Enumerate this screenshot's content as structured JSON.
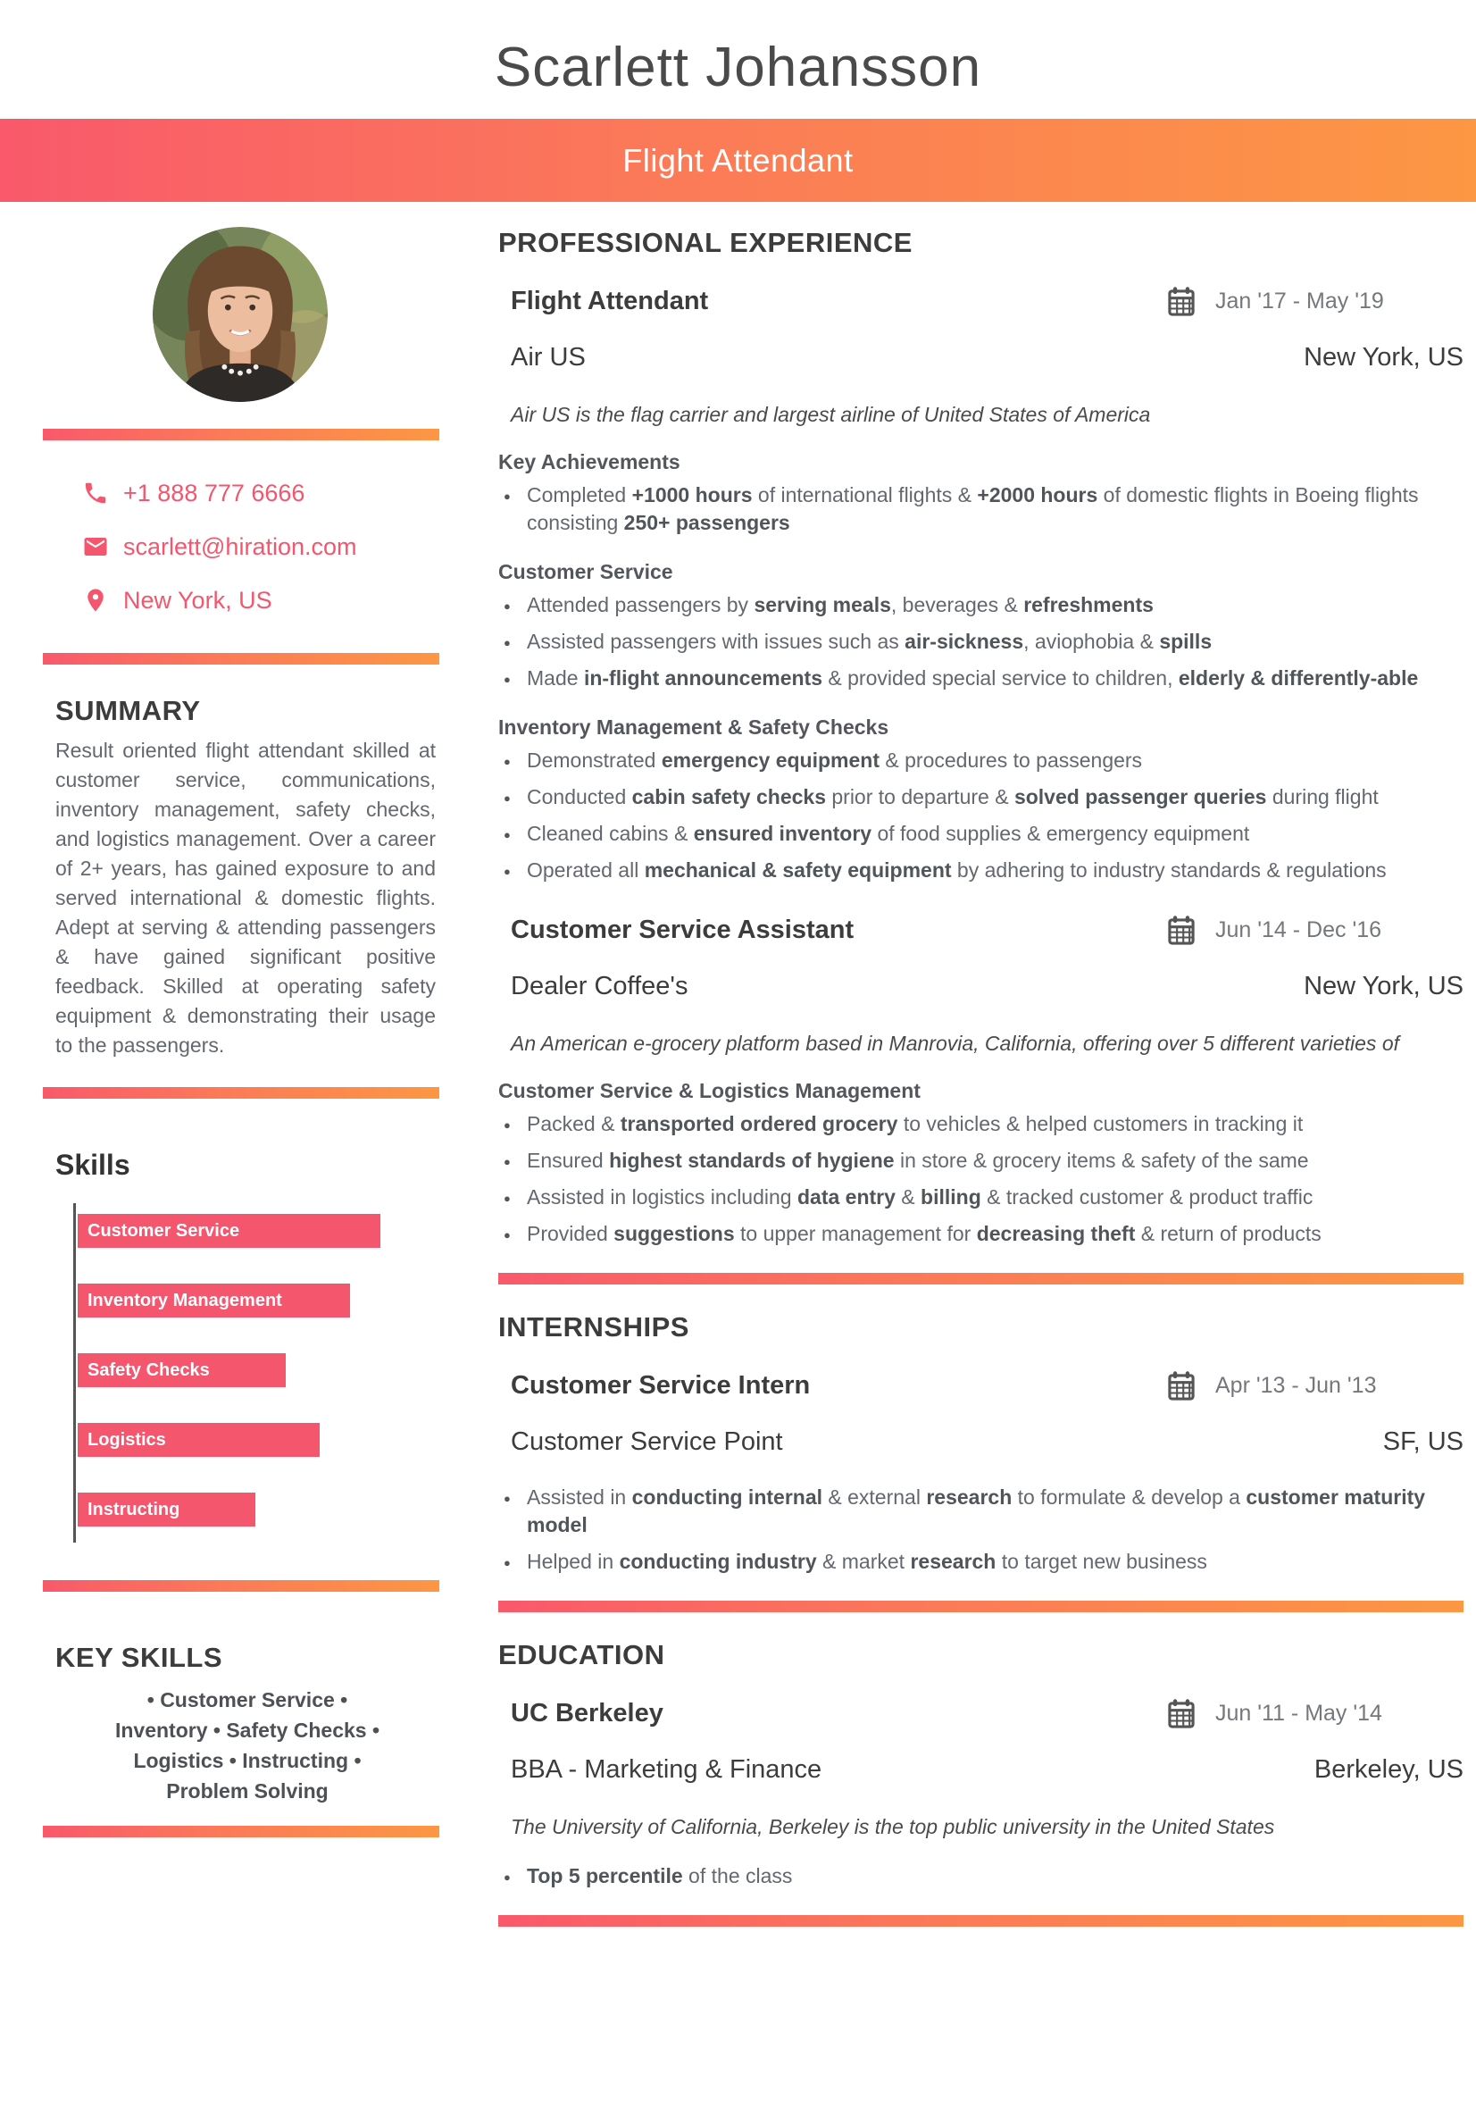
{
  "header": {
    "name": "Scarlett Johansson",
    "title": "Flight Attendant"
  },
  "colors": {
    "accent_pink": "#f4566e",
    "gradient_start": "#f9596b",
    "gradient_end": "#fc9744",
    "heading_dark": "#3c3c3c",
    "body_gray": "#63686e"
  },
  "sidebar": {
    "contact": {
      "phone": "+1 888 777 6666",
      "email": "scarlett@hiration.com",
      "location": "New York, US"
    },
    "summary": {
      "heading": "SUMMARY",
      "text": "Result oriented flight attendant skilled at customer service, communications, inventory management, safety checks, and logistics management. Over a career of 2+ years, has gained exposure to and served international & domestic flights. Adept at serving & attending passengers & have gained significant positive feedback. Skilled at operating safety equipment & demonstrating their usage to the passengers."
    },
    "skills_chart": {
      "heading": "Skills",
      "type": "bar",
      "items": [
        {
          "label": "Customer Service",
          "pct": 80
        },
        {
          "label": "Inventory Management",
          "pct": 72
        },
        {
          "label": "Safety Checks",
          "pct": 55
        },
        {
          "label": "Logistics",
          "pct": 64
        },
        {
          "label": "Instructing",
          "pct": 47
        }
      ]
    },
    "key_skills": {
      "heading": "KEY SKILLS",
      "text": "• Customer Service • Inventory • Safety Checks • Logistics • Instructing • Problem Solving"
    }
  },
  "main": {
    "experience": {
      "heading": "PROFESSIONAL EXPERIENCE",
      "jobs": [
        {
          "title": "Flight Attendant",
          "dates": "Jan '17 -  May '19",
          "company": "Air US",
          "location": "New York, US",
          "description": "Air US is the flag carrier and largest airline of United States of America",
          "groups": [
            {
              "heading": "Key Achievements",
              "bullets": [
                [
                  {
                    "t": "Completed "
                  },
                  {
                    "t": "+1000 hours",
                    "b": true
                  },
                  {
                    "t": " of international flights & ",
                    "b": false
                  },
                  {
                    "t": "+2000 hours",
                    "b": true
                  },
                  {
                    "t": " of domestic flights in Boeing flights consisting "
                  },
                  {
                    "t": "250+ passengers",
                    "b": true
                  }
                ]
              ]
            },
            {
              "heading": "Customer Service",
              "bullets": [
                [
                  {
                    "t": "Attended passengers by "
                  },
                  {
                    "t": "serving meals",
                    "b": true
                  },
                  {
                    "t": ", beverages & "
                  },
                  {
                    "t": "refreshments",
                    "b": true
                  }
                ],
                [
                  {
                    "t": "Assisted passengers with issues such as "
                  },
                  {
                    "t": "air-sickness",
                    "b": true
                  },
                  {
                    "t": ", aviophobia & "
                  },
                  {
                    "t": "spills",
                    "b": true
                  }
                ],
                [
                  {
                    "t": "Made "
                  },
                  {
                    "t": "in-flight announcements",
                    "b": true
                  },
                  {
                    "t": " & provided special service to children, "
                  },
                  {
                    "t": "elderly & differently-able",
                    "b": true
                  }
                ]
              ]
            },
            {
              "heading": "Inventory Management & Safety Checks",
              "bullets": [
                [
                  {
                    "t": "Demonstrated "
                  },
                  {
                    "t": "emergency equipment",
                    "b": true
                  },
                  {
                    "t": " & procedures to passengers"
                  }
                ],
                [
                  {
                    "t": "Conducted "
                  },
                  {
                    "t": "cabin safety checks",
                    "b": true
                  },
                  {
                    "t": " prior to departure & "
                  },
                  {
                    "t": "solved passenger queries",
                    "b": true
                  },
                  {
                    "t": " during flight"
                  }
                ],
                [
                  {
                    "t": "Cleaned cabins & "
                  },
                  {
                    "t": "ensured inventory",
                    "b": true
                  },
                  {
                    "t": " of food supplies & emergency equipment"
                  }
                ],
                [
                  {
                    "t": "Operated all "
                  },
                  {
                    "t": "mechanical & safety equipment",
                    "b": true
                  },
                  {
                    "t": " by adhering to industry standards & regulations"
                  }
                ]
              ]
            }
          ]
        },
        {
          "title": "Customer Service Assistant",
          "dates": "Jun '14 -  Dec '16",
          "company": "Dealer Coffee's",
          "location": "New York, US",
          "description": "An American e-grocery platform based in Manrovia, California, offering over 5 different varieties of",
          "groups": [
            {
              "heading": "Customer Service & Logistics Management",
              "bullets": [
                [
                  {
                    "t": "Packed & "
                  },
                  {
                    "t": "transported ordered grocery",
                    "b": true
                  },
                  {
                    "t": " to vehicles & helped customers in tracking it"
                  }
                ],
                [
                  {
                    "t": "Ensured "
                  },
                  {
                    "t": "highest standards of hygiene",
                    "b": true
                  },
                  {
                    "t": " in store & grocery items & safety of the same"
                  }
                ],
                [
                  {
                    "t": "Assisted in logistics including "
                  },
                  {
                    "t": "data entry",
                    "b": true
                  },
                  {
                    "t": " & "
                  },
                  {
                    "t": "billing",
                    "b": true
                  },
                  {
                    "t": " & tracked customer & product traffic"
                  }
                ],
                [
                  {
                    "t": "Provided "
                  },
                  {
                    "t": "suggestions",
                    "b": true
                  },
                  {
                    "t": " to upper management for "
                  },
                  {
                    "t": "decreasing theft",
                    "b": true
                  },
                  {
                    "t": " & return of products"
                  }
                ]
              ]
            }
          ]
        }
      ]
    },
    "internships": {
      "heading": "INTERNSHIPS",
      "title": "Customer Service Intern",
      "dates": "Apr '13 -  Jun '13",
      "company": "Customer Service Point",
      "location": "SF, US",
      "bullets": [
        [
          {
            "t": "Assisted in "
          },
          {
            "t": "conducting internal",
            "b": true
          },
          {
            "t": " & external "
          },
          {
            "t": "research",
            "b": true
          },
          {
            "t": " to formulate & develop a "
          },
          {
            "t": "customer maturity model",
            "b": true
          }
        ],
        [
          {
            "t": "Helped in "
          },
          {
            "t": "conducting industry",
            "b": true
          },
          {
            "t": " & market "
          },
          {
            "t": "research",
            "b": true
          },
          {
            "t": " to target new business"
          }
        ]
      ]
    },
    "education": {
      "heading": "EDUCATION",
      "school": "UC Berkeley",
      "dates": "Jun '11 -  May '14",
      "degree": "BBA - Marketing & Finance",
      "location": "Berkeley, US",
      "description": "The University of California, Berkeley is the top public university in the United States",
      "bullets": [
        [
          {
            "t": "Top 5 percentile",
            "b": true
          },
          {
            "t": " of the class"
          }
        ]
      ]
    }
  }
}
